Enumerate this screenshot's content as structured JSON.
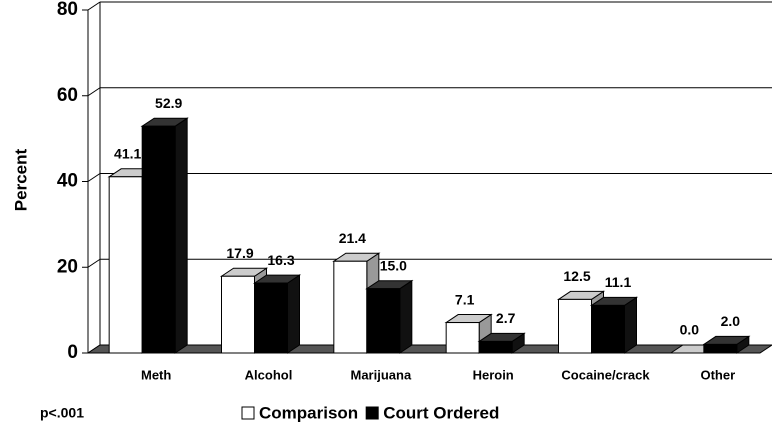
{
  "chart_data": {
    "type": "bar3d",
    "y_label": "Percent",
    "annotation": "p<.001",
    "categories": [
      "Meth",
      "Alcohol",
      "Marijuana",
      "Heroin",
      "Cocaine/crack",
      "Other"
    ],
    "series": [
      {
        "name": "Comparison",
        "color": "#ffffff",
        "values": [
          41.1,
          17.9,
          21.4,
          7.1,
          12.5,
          0.0
        ],
        "value_labels": [
          "41.1",
          "17.9",
          "21.4",
          "7.1",
          "12.5",
          "0.0"
        ]
      },
      {
        "name": "Court Ordered",
        "color": "#000000",
        "values": [
          52.9,
          16.3,
          15.0,
          2.7,
          11.1,
          2.0
        ],
        "value_labels": [
          "52.9",
          "16.3",
          "15.0",
          "2.7",
          "11.1",
          "2.0"
        ]
      }
    ],
    "ylim": [
      0,
      80
    ],
    "yticks": [
      0,
      20,
      40,
      60,
      80
    ],
    "grid": true,
    "legend": "bottom"
  }
}
